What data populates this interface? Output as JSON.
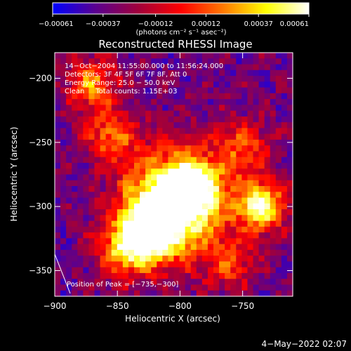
{
  "chart_data": {
    "type": "heatmap",
    "title": "Reconstructed RHESSI Image",
    "xlabel": "Heliocentric X (arcsec)",
    "ylabel": "Heliocentric Y (arcsec)",
    "xlim": [
      -900,
      -710
    ],
    "ylim": [
      -370,
      -180
    ],
    "x_ticks": [
      -900,
      -850,
      -800,
      -750
    ],
    "x_tick_labels": [
      "−900",
      "−850",
      "−800",
      "−750"
    ],
    "y_ticks": [
      -350,
      -300,
      -250,
      -200
    ],
    "y_tick_labels": [
      "−350",
      "−300",
      "−250",
      "−200"
    ],
    "colorbar": {
      "ticks": [
        -0.00061,
        -0.00037,
        -0.00012,
        0.00012,
        0.00037,
        0.00061
      ],
      "tick_labels": [
        "−0.00061",
        "−0.00037",
        "−0.00012",
        "0.00012",
        "0.00037",
        "0.00061"
      ],
      "unit_label": "(photons cm⁻² s⁻¹ asec⁻²)",
      "colors": [
        "#0000ff",
        "#5a0090",
        "#a0003c",
        "#ff0000",
        "#ff7a00",
        "#ffff00",
        "#ffffff"
      ]
    },
    "annotations": [
      "14−Oct−2004 11:55:00.000 to 11:56:24.000",
      "Detectors: 3F 4F 5F 6F 7F 8F, Att 0",
      "Energy Range: 25.0 − 50.0 keV",
      "Clean     Total counts: 1.15E+03"
    ],
    "peak_label": "Position of Peak = [−735,−300]",
    "peak": [
      -735,
      -300
    ],
    "sources": [
      {
        "x": -805,
        "y": -298,
        "amp": 0.9,
        "sigma": 28
      },
      {
        "x": -825,
        "y": -320,
        "amp": 0.6,
        "sigma": 16
      },
      {
        "x": -790,
        "y": -285,
        "amp": 0.55,
        "sigma": 14
      },
      {
        "x": -735,
        "y": -300,
        "amp": 0.75,
        "sigma": 13
      },
      {
        "x": -845,
        "y": -335,
        "amp": 0.45,
        "sigma": 14
      },
      {
        "x": -870,
        "y": -205,
        "amp": 0.45,
        "sigma": 14
      },
      {
        "x": -855,
        "y": -245,
        "amp": 0.4,
        "sigma": 14
      },
      {
        "x": -750,
        "y": -255,
        "amp": 0.35,
        "sigma": 16
      },
      {
        "x": -760,
        "y": -345,
        "amp": 0.3,
        "sigma": 14
      }
    ]
  },
  "footer": {
    "date": "4−May−2022 02:07"
  }
}
